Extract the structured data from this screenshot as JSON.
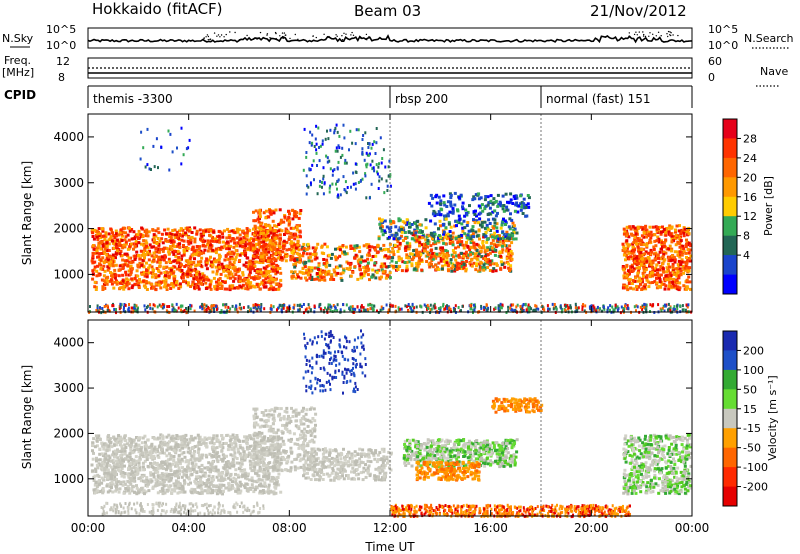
{
  "header": {
    "station": "Hokkaido (fitACF)",
    "beam": "Beam 03",
    "date": "21/Nov/2012"
  },
  "left_labels": {
    "nsky": "N.Sky",
    "freq": "Freq.",
    "freq_unit": "[MHz]",
    "cpid": "CPID"
  },
  "right_labels": {
    "nsearch": "N.Search",
    "nave": "Nave"
  },
  "nsky_panel": {
    "left_ticks": [
      "10^5",
      "10^0"
    ],
    "right_ticks": [
      "10^5",
      "10^0"
    ]
  },
  "freq_panel": {
    "left_ticks": [
      "12",
      "8"
    ],
    "right_ticks": [
      "60",
      "0"
    ]
  },
  "cpid_segments": [
    {
      "label": "themis -3300",
      "start_hour": 0
    },
    {
      "label": "rbsp 200",
      "start_hour": 12
    },
    {
      "label": "normal (fast) 151",
      "start_hour": 18
    }
  ],
  "chart_data": [
    {
      "type": "heatmap",
      "name": "power",
      "ylabel": "Slant Range [km]",
      "xlabel": "",
      "x_range_hours": [
        0,
        24
      ],
      "y_range_km": [
        180,
        4500
      ],
      "y_ticks": [
        1000,
        2000,
        3000,
        4000
      ],
      "colorbar_label": "Power [dB]",
      "colorbar_ticks": [
        28,
        24,
        20,
        16,
        12,
        8,
        4
      ],
      "colorbar_colors": [
        "#e6001a",
        "#ff3300",
        "#ff6600",
        "#ff9900",
        "#ffcc00",
        "#33aa55",
        "#226655",
        "#1a44cc",
        "#0000ff"
      ]
    },
    {
      "type": "heatmap",
      "name": "velocity",
      "ylabel": "Slant Range [km]",
      "xlabel": "Time UT",
      "x_range_hours": [
        0,
        24
      ],
      "y_range_km": [
        180,
        4500
      ],
      "y_ticks": [
        1000,
        2000,
        3000,
        4000
      ],
      "colorbar_label": "Velocity [m s⁻¹]",
      "colorbar_ticks": [
        200,
        100,
        50,
        15,
        -15,
        -50,
        -100,
        -200
      ],
      "colorbar_colors": [
        "#1a2ab0",
        "#1e50c8",
        "#33aa33",
        "#66dd33",
        "#c8c8be",
        "#ffa000",
        "#ff6600",
        "#ff2a00",
        "#e60000"
      ]
    }
  ],
  "time_axis": {
    "tick_labels": [
      "00:00",
      "04:00",
      "08:00",
      "12:00",
      "16:00",
      "20:00",
      "00:00"
    ],
    "tick_hours": [
      0,
      4,
      8,
      12,
      16,
      20,
      24
    ]
  }
}
